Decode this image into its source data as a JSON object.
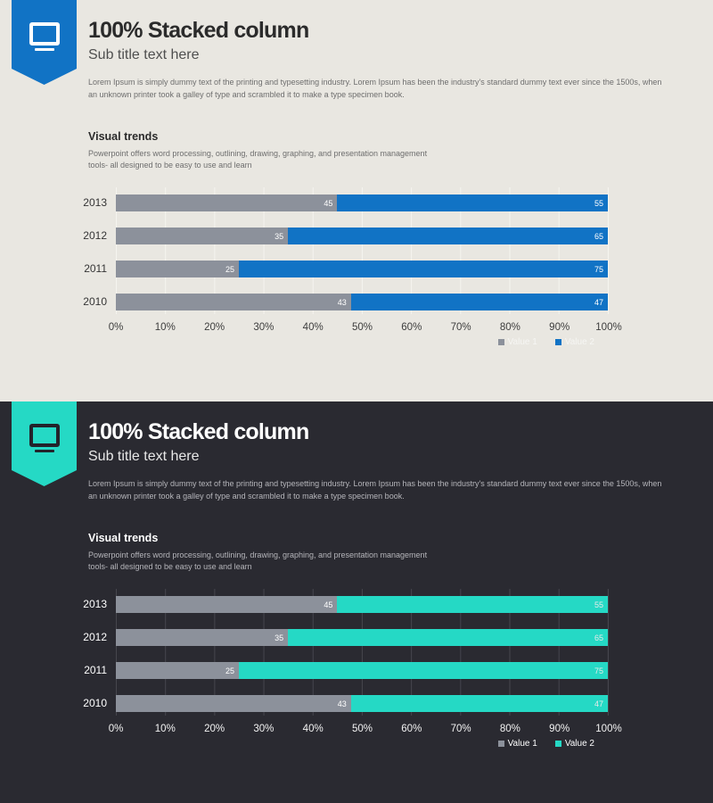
{
  "slides": [
    {
      "id": "light",
      "title": "100% Stacked column",
      "subtitle": "Sub title text here",
      "intro": {
        "line1": "Lorem Ipsum is simply dummy text of the printing and typesetting industry. Lorem Ipsum has been the industry's standard dummy text ever since the 1500s, when",
        "line2": "an unknown printer took a galley of type and scrambled it to make a type specimen book."
      },
      "section": {
        "heading": "Visual trends",
        "line1": "Powerpoint offers word processing, outlining, drawing, graphing, and presentation management",
        "line2": "tools- all designed to be easy to use and learn"
      },
      "theme": {
        "background": "#e9e7e1",
        "ribbon": "#1173c5",
        "icon": "#ffffff",
        "title": "#2b2b2b",
        "subtitle": "#4f4f4f",
        "body": "#6e6e6e",
        "heading": "#2b2b2b",
        "grid": "#f5f4ef",
        "tick": "#3d3d3d",
        "year": "#353535",
        "legend": "#f6f6f3",
        "val1": "#ffffff",
        "val2": "#ffffff"
      }
    },
    {
      "id": "dark",
      "title": "100% Stacked column",
      "subtitle": "Sub title text here",
      "intro": {
        "line1": "Lorem Ipsum is simply dummy text of the printing and typesetting industry. Lorem Ipsum has been the industry's standard dummy text ever since the 1500s, when",
        "line2": "an unknown printer took a galley of type and scrambled it to make a type specimen book."
      },
      "section": {
        "heading": "Visual trends",
        "line1": "Powerpoint offers word processing, outlining, drawing, graphing, and presentation management",
        "line2": "tools- all designed to be easy to use and learn"
      },
      "theme": {
        "background": "#2a2a31",
        "ribbon": "#25d9c5",
        "icon": "#23232b",
        "title": "#ffffff",
        "subtitle": "#e8e8e8",
        "body": "#b5b5ba",
        "heading": "#ffffff",
        "grid": "#45454d",
        "tick": "#f2f2f2",
        "year": "#ffffff",
        "legend": "#ffffff",
        "val1": "#ffffff",
        "val2": "#e9e9e9"
      }
    }
  ],
  "chart_data": [
    {
      "type": "bar",
      "orientation": "horizontal",
      "stacked": true,
      "normalized": "100%",
      "title": "Visual trends",
      "categories": [
        "2013",
        "2012",
        "2011",
        "2010"
      ],
      "series": [
        {
          "name": "Value 1",
          "color": "#8c919b",
          "values": [
            45,
            35,
            25,
            43
          ]
        },
        {
          "name": "Value 2",
          "color": "#1173c5",
          "values": [
            55,
            65,
            75,
            47
          ]
        }
      ],
      "x_ticks": [
        "0%",
        "10%",
        "20%",
        "30%",
        "40%",
        "50%",
        "60%",
        "70%",
        "80%",
        "90%",
        "100%"
      ],
      "xlim": [
        0,
        100
      ],
      "grid": true,
      "legend_position": "bottom-right",
      "theme": "light"
    },
    {
      "type": "bar",
      "orientation": "horizontal",
      "stacked": true,
      "normalized": "100%",
      "title": "Visual trends",
      "categories": [
        "2013",
        "2012",
        "2011",
        "2010"
      ],
      "series": [
        {
          "name": "Value 1",
          "color": "#8c919b",
          "values": [
            45,
            35,
            25,
            43
          ]
        },
        {
          "name": "Value 2",
          "color": "#25d9c5",
          "values": [
            55,
            65,
            75,
            47
          ]
        }
      ],
      "x_ticks": [
        "0%",
        "10%",
        "20%",
        "30%",
        "40%",
        "50%",
        "60%",
        "70%",
        "80%",
        "90%",
        "100%"
      ],
      "xlim": [
        0,
        100
      ],
      "grid": true,
      "legend_position": "bottom-right",
      "theme": "dark"
    }
  ]
}
